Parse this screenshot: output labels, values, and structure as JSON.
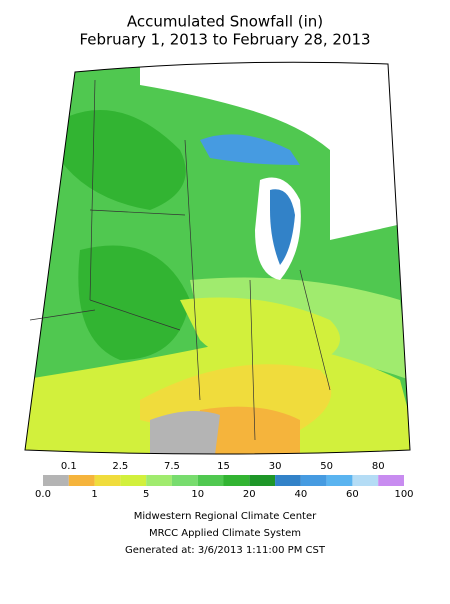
{
  "title": "Accumulated Snowfall (in)",
  "subtitle": "February 1, 2013 to February 28, 2013",
  "legend": {
    "labels": [
      "0.0",
      "0.1",
      "1",
      "2.5",
      "5",
      "7.5",
      "10",
      "15",
      "20",
      "30",
      "40",
      "50",
      "60",
      "80",
      "100"
    ],
    "colors": [
      "#b4b4b4",
      "#f5b43c",
      "#f0dc3c",
      "#d2f03c",
      "#a0eb6e",
      "#78dc6e",
      "#50c850",
      "#32b432",
      "#1e9628",
      "#3282c8",
      "#469be1",
      "#5ab4f0",
      "#b4dcf5",
      "#c88cf0"
    ]
  },
  "footer": [
    "Midwestern Regional Climate Center",
    "MRCC Applied Climate System",
    "Generated at: 3/6/2013 1:11:00 PM CST"
  ]
}
